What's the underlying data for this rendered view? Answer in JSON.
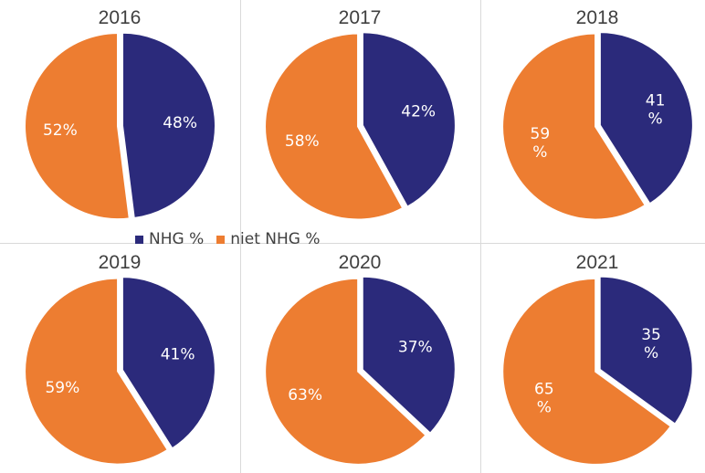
{
  "colors": {
    "nhg": "#2b2a7b",
    "niet_nhg": "#ed7d31"
  },
  "legend": {
    "items": [
      {
        "label": "NHG %"
      },
      {
        "label": "niet NHG %"
      }
    ]
  },
  "chart_data": {
    "type": "pie",
    "legend": [
      "NHG %",
      "niet NHG %"
    ],
    "legend_position": "center",
    "charts": [
      {
        "title": "2016",
        "slices": [
          {
            "name": "NHG %",
            "value": 48,
            "label": "48%"
          },
          {
            "name": "niet NHG %",
            "value": 52,
            "label": "52%"
          }
        ]
      },
      {
        "title": "2017",
        "slices": [
          {
            "name": "NHG %",
            "value": 42,
            "label": "42%"
          },
          {
            "name": "niet NHG %",
            "value": 58,
            "label": "58%"
          }
        ]
      },
      {
        "title": "2018",
        "slices": [
          {
            "name": "NHG %",
            "value": 41,
            "label": "41\n%"
          },
          {
            "name": "niet NHG %",
            "value": 59,
            "label": "59\n%"
          }
        ]
      },
      {
        "title": "2019",
        "slices": [
          {
            "name": "NHG %",
            "value": 41,
            "label": "41%"
          },
          {
            "name": "niet NHG %",
            "value": 59,
            "label": "59%"
          }
        ]
      },
      {
        "title": "2020",
        "slices": [
          {
            "name": "NHG %",
            "value": 37,
            "label": "37%"
          },
          {
            "name": "niet NHG %",
            "value": 63,
            "label": "63%"
          }
        ]
      },
      {
        "title": "2021",
        "slices": [
          {
            "name": "NHG %",
            "value": 35,
            "label": "35\n%"
          },
          {
            "name": "niet NHG %",
            "value": 65,
            "label": "65\n%"
          }
        ]
      }
    ]
  }
}
